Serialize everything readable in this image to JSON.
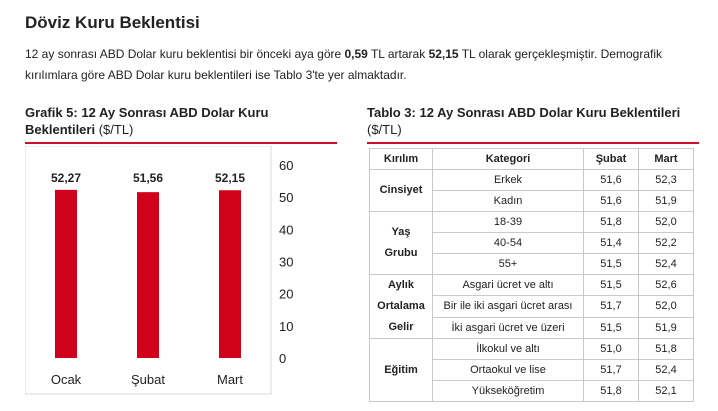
{
  "page": {
    "title": "Döviz Kuru Beklentisi",
    "intro_prefix": "12 ay sonrası ABD Dolar kuru beklentisi bir önceki aya göre ",
    "intro_change": "0,59",
    "intro_mid": " TL artarak ",
    "intro_level": "52,15",
    "intro_suffix": " TL olarak gerçekleşmiştir. Demografik kırılımlara göre ABD Dolar kuru beklentileri ise Tablo 3'te yer almaktadır."
  },
  "chart": {
    "title_bold": "Grafik 5: 12 Ay Sonrası ABD Dolar Kuru Beklentileri",
    "title_unit": " ($/TL)"
  },
  "chart_data": {
    "type": "bar",
    "categories": [
      "Ocak",
      "Şubat",
      "Mart"
    ],
    "values": [
      52.27,
      51.56,
      52.15
    ],
    "value_labels": [
      "52,27",
      "51,56",
      "52,15"
    ],
    "ylim": [
      0,
      60
    ],
    "yticks": [
      0,
      10,
      20,
      30,
      40,
      50,
      60
    ],
    "y_axis_side": "right",
    "grid": false,
    "bar_color": "#d0021b"
  },
  "table": {
    "title_bold": "Tablo 3: 12 Ay Sonrası ABD Dolar Kuru Beklentileri",
    "title_unit": " ($/TL)",
    "headers": [
      "Kırılım",
      "Kategori",
      "Şubat",
      "Mart"
    ],
    "groups": [
      {
        "name_lines": [
          "Cinsiyet"
        ],
        "rows": [
          {
            "cat": "Erkek",
            "feb": "51,6",
            "mar": "52,3"
          },
          {
            "cat": "Kadın",
            "feb": "51,6",
            "mar": "51,9"
          }
        ]
      },
      {
        "name_lines": [
          "Yaş",
          "Grubu"
        ],
        "rows": [
          {
            "cat": "18-39",
            "feb": "51,8",
            "mar": "52,0"
          },
          {
            "cat": "40-54",
            "feb": "51,4",
            "mar": "52,2"
          },
          {
            "cat": "55+",
            "feb": "51,5",
            "mar": "52,4"
          }
        ]
      },
      {
        "name_lines": [
          "Aylık",
          "Ortalama",
          "Gelir"
        ],
        "rows": [
          {
            "cat": "Asgari ücret ve altı",
            "feb": "51,5",
            "mar": "52,6"
          },
          {
            "cat": "Bir ile iki asgari ücret arası",
            "feb": "51,7",
            "mar": "52,0"
          },
          {
            "cat": "İki asgari ücret ve üzeri",
            "feb": "51,5",
            "mar": "51,9"
          }
        ]
      },
      {
        "name_lines": [
          "Eğitim"
        ],
        "rows": [
          {
            "cat": "İlkokul ve altı",
            "feb": "51,0",
            "mar": "51,8"
          },
          {
            "cat": "Ortaokul ve lise",
            "feb": "51,7",
            "mar": "52,4"
          },
          {
            "cat": "Yükseköğretim",
            "feb": "51,8",
            "mar": "52,1"
          }
        ]
      }
    ]
  }
}
